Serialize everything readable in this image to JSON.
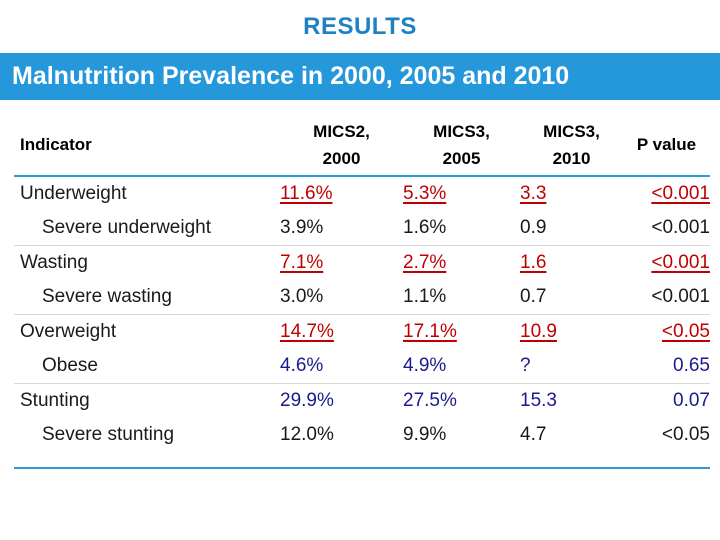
{
  "slide": {
    "title": "RESULTS",
    "banner": "Malnutrition Prevalence in 2000, 2005 and 2010"
  },
  "colors": {
    "title_blue": "#1E81C4",
    "banner_bg": "#2598DC",
    "banner_text": "#FFFFFF",
    "rule_blue": "#2D9AD5",
    "separator_gray": "#D8D8D8",
    "value_red": "#C00000",
    "value_navy": "#1A1A8C",
    "value_black": "#1A1A1A"
  },
  "table": {
    "header": {
      "indicator": "Indicator",
      "col1_line1": "MICS2,",
      "col1_line2": "2000",
      "col2_line1": "MICS3,",
      "col2_line2": "2005",
      "col3_line1": "MICS3,",
      "col3_line2": "2010",
      "pvalue": "P value"
    },
    "rows": [
      {
        "indicator": "Underweight",
        "indent": false,
        "style": "red-underline",
        "values": [
          "11.6%",
          "5.3%",
          "3.3",
          "<0.001"
        ]
      },
      {
        "indicator": "Severe underweight",
        "indent": true,
        "style": "black",
        "values": [
          "3.9%",
          "1.6%",
          "0.9",
          "<0.001"
        ]
      },
      {
        "indicator": "Wasting",
        "indent": false,
        "style": "red-underline",
        "values": [
          "7.1%",
          "2.7%",
          "1.6",
          "<0.001"
        ]
      },
      {
        "indicator": "Severe wasting",
        "indent": true,
        "style": "black",
        "values": [
          "3.0%",
          "1.1%",
          "0.7",
          "<0.001"
        ]
      },
      {
        "indicator": "Overweight",
        "indent": false,
        "style": "red-underline",
        "values": [
          "14.7%",
          "17.1%",
          "10.9",
          "<0.05"
        ]
      },
      {
        "indicator": "Obese",
        "indent": true,
        "style": "navy",
        "values": [
          "4.6%",
          "4.9%",
          "?",
          "0.65"
        ]
      },
      {
        "indicator": "Stunting",
        "indent": false,
        "style": "navy",
        "values": [
          "29.9%",
          "27.5%",
          "15.3",
          "0.07"
        ]
      },
      {
        "indicator": "Severe stunting",
        "indent": true,
        "style": "black",
        "values": [
          "12.0%",
          "9.9%",
          "4.7",
          "<0.05"
        ]
      }
    ]
  }
}
